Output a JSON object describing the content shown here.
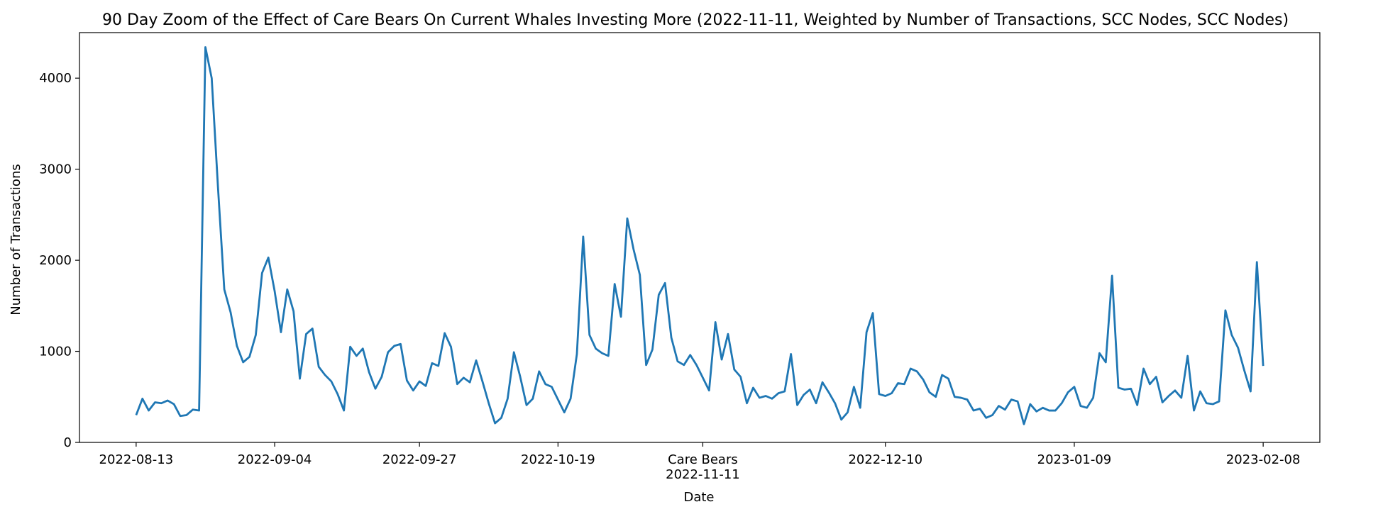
{
  "chart_data": {
    "type": "line",
    "title": "90 Day Zoom of the Effect of Care Bears On Current Whales Investing More (2022-11-11, Weighted by Number of Transactions, SCC Nodes, SCC Nodes)",
    "xlabel": "Date",
    "ylabel": "Number of Transactions",
    "ylim": [
      0,
      4500
    ],
    "xlim": [
      "2022-08-04",
      "2023-02-17"
    ],
    "grid": false,
    "line_color": "#1f77b4",
    "y_ticks": [
      0,
      1000,
      2000,
      3000,
      4000
    ],
    "x_ticks": [
      {
        "date": "2022-08-13",
        "label": "2022-08-13"
      },
      {
        "date": "2022-09-04",
        "label": "2022-09-04"
      },
      {
        "date": "2022-09-27",
        "label": "2022-09-27"
      },
      {
        "date": "2022-10-19",
        "label": "2022-10-19"
      },
      {
        "date": "2022-11-11",
        "label": "2022-11-11",
        "annotation": "Care Bears"
      },
      {
        "date": "2022-12-10",
        "label": "2022-12-10"
      },
      {
        "date": "2023-01-09",
        "label": "2023-01-09"
      },
      {
        "date": "2023-02-08",
        "label": "2023-02-08"
      }
    ],
    "series": [
      {
        "start_date": "2022-08-13",
        "step_days": 1,
        "values": [
          300,
          480,
          350,
          440,
          430,
          460,
          420,
          290,
          300,
          360,
          350,
          4340,
          4000,
          2800,
          1680,
          1430,
          1060,
          880,
          940,
          1180,
          1860,
          2030,
          1660,
          1210,
          1680,
          1440,
          700,
          1190,
          1250,
          830,
          740,
          670,
          530,
          350,
          1050,
          950,
          1030,
          770,
          590,
          720,
          990,
          1060,
          1080,
          680,
          570,
          670,
          620,
          870,
          840,
          1200,
          1050,
          640,
          710,
          660,
          900,
          670,
          430,
          210,
          270,
          480,
          990,
          720,
          410,
          480,
          780,
          640,
          610,
          470,
          330,
          480,
          970,
          2260,
          1180,
          1030,
          980,
          950,
          1740,
          1380,
          2460,
          2120,
          1840,
          850,
          1020,
          1620,
          1750,
          1150,
          890,
          850,
          960,
          850,
          710,
          570,
          1320,
          910,
          1190,
          800,
          720,
          430,
          600,
          490,
          510,
          480,
          540,
          560,
          970,
          410,
          520,
          580,
          430,
          660,
          550,
          430,
          250,
          330,
          610,
          380,
          1210,
          1420,
          530,
          510,
          540,
          650,
          640,
          810,
          780,
          690,
          550,
          500,
          740,
          700,
          500,
          490,
          470,
          350,
          370,
          270,
          300,
          400,
          360,
          470,
          450,
          200,
          420,
          340,
          380,
          350,
          350,
          430,
          550,
          610,
          400,
          380,
          490,
          980,
          880,
          1830,
          600,
          580,
          590,
          410,
          810,
          640,
          720,
          440,
          510,
          570,
          490,
          950,
          350,
          560,
          430,
          420,
          450,
          1450,
          1180,
          1040,
          790,
          560,
          1980,
          840
        ]
      }
    ]
  }
}
